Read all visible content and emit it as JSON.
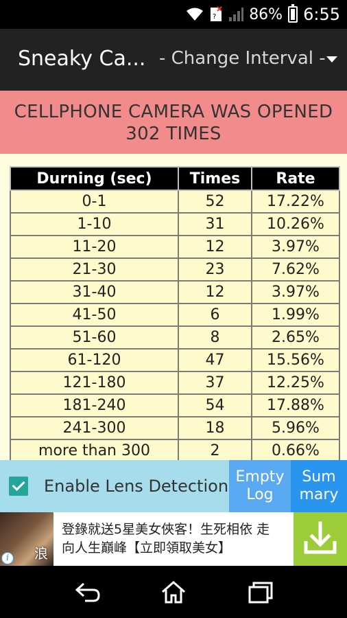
{
  "status_bar": {
    "battery_percent": "86%",
    "time": "6:55",
    "icons": [
      "wifi-icon",
      "sim-no-signal-icon",
      "signal-icon",
      "battery-icon"
    ]
  },
  "action_bar": {
    "title": "Sneaky Ca...",
    "interval_dropdown": "- Change Interval -"
  },
  "banner": {
    "line1": "CELLPHONE CAMERA WAS OPENED",
    "line2": "302 TIMES"
  },
  "table": {
    "headers": [
      "Durning (sec)",
      "Times",
      "Rate"
    ],
    "rows": [
      [
        "0-1",
        "52",
        "17.22%"
      ],
      [
        "1-10",
        "31",
        "10.26%"
      ],
      [
        "11-20",
        "12",
        "3.97%"
      ],
      [
        "21-30",
        "23",
        "7.62%"
      ],
      [
        "31-40",
        "12",
        "3.97%"
      ],
      [
        "41-50",
        "6",
        "1.99%"
      ],
      [
        "51-60",
        "8",
        "2.65%"
      ],
      [
        "61-120",
        "47",
        "15.56%"
      ],
      [
        "121-180",
        "37",
        "12.25%"
      ],
      [
        "181-240",
        "54",
        "17.88%"
      ],
      [
        "241-300",
        "18",
        "5.96%"
      ],
      [
        "more than 300",
        "2",
        "0.66%"
      ]
    ]
  },
  "bottom_bar": {
    "lens_detection_label": "Enable Lens Detection",
    "lens_detection_checked": true,
    "empty_log_line1": "Empty",
    "empty_log_line2": "Log",
    "summary_line1": "Sum",
    "summary_line2": "mary"
  },
  "ad": {
    "image_char": "浪",
    "line1": "登錄就送5星美女俠客！生死相依 走",
    "line2": "向人生巔峰【立即領取美女】",
    "info_label": "i"
  },
  "colors": {
    "banner_bg": "#f28b8b",
    "table_bg": "#fffacc",
    "checkbox_accent": "#26a69a",
    "empty_log_bg": "#58a9f2",
    "summary_bg": "#2a95ef",
    "download_bg": "#9ccc3a",
    "bottom_bar_bg": "#a7dcec"
  }
}
